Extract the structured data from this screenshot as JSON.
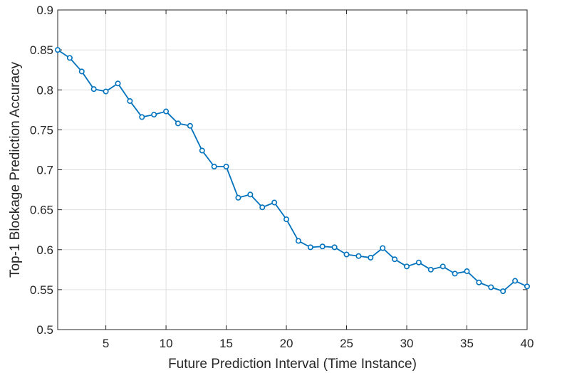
{
  "chart_data": {
    "type": "line",
    "title": "",
    "xlabel": "Future Prediction Interval (Time Instance)",
    "ylabel": "Top-1 Blockage Prediction Accuracy",
    "xlim": [
      1,
      40
    ],
    "ylim": [
      0.5,
      0.9
    ],
    "xticks": [
      5,
      10,
      15,
      20,
      25,
      30,
      35,
      40
    ],
    "xtick_labels": [
      "5",
      "10",
      "15",
      "20",
      "25",
      "30",
      "35",
      "40"
    ],
    "yticks": [
      0.5,
      0.55,
      0.6,
      0.65,
      0.7,
      0.75,
      0.8,
      0.85,
      0.9
    ],
    "ytick_labels": [
      "0.5",
      "0.55",
      "0.6",
      "0.65",
      "0.7",
      "0.75",
      "0.8",
      "0.85",
      "0.9"
    ],
    "grid": true,
    "legend": "none",
    "series": [
      {
        "color": "#0072bd",
        "marker": "open-circle",
        "x": [
          1,
          2,
          3,
          4,
          5,
          6,
          7,
          8,
          9,
          10,
          11,
          12,
          13,
          14,
          15,
          16,
          17,
          18,
          19,
          20,
          21,
          22,
          23,
          24,
          25,
          26,
          27,
          28,
          29,
          30,
          31,
          32,
          33,
          34,
          35,
          36,
          37,
          38,
          39,
          40
        ],
        "values": [
          0.85,
          0.84,
          0.823,
          0.801,
          0.798,
          0.808,
          0.786,
          0.766,
          0.769,
          0.773,
          0.758,
          0.755,
          0.724,
          0.704,
          0.704,
          0.665,
          0.669,
          0.653,
          0.659,
          0.638,
          0.611,
          0.603,
          0.604,
          0.603,
          0.594,
          0.592,
          0.59,
          0.602,
          0.588,
          0.579,
          0.584,
          0.575,
          0.579,
          0.57,
          0.573,
          0.559,
          0.553,
          0.548,
          0.561,
          0.554
        ]
      }
    ]
  }
}
